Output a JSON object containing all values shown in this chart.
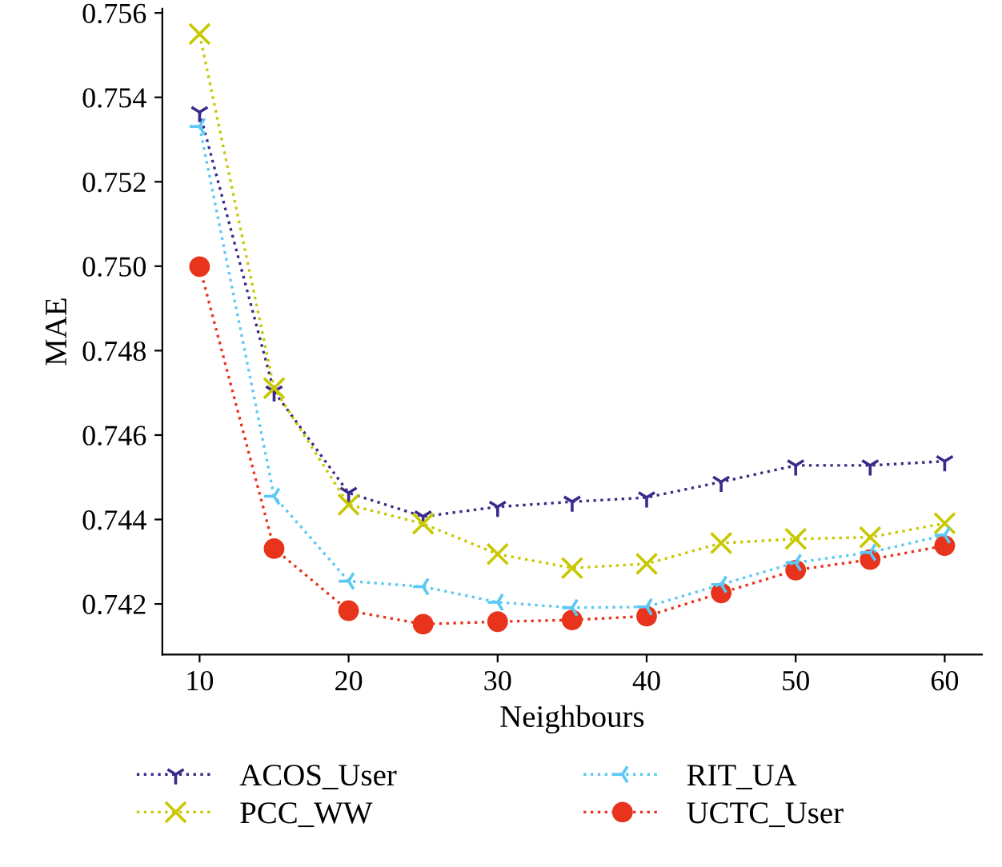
{
  "chart_data": {
    "type": "line",
    "xlabel": "Neighbours",
    "ylabel": "MAE",
    "x": [
      10,
      15,
      20,
      25,
      30,
      35,
      40,
      45,
      50,
      55,
      60
    ],
    "xlim": [
      7.5,
      62.5
    ],
    "xticks": [
      10,
      20,
      30,
      40,
      50,
      60
    ],
    "ylim": [
      0.7408,
      0.7561
    ],
    "yticks": [
      {
        "value": 0.742,
        "label": "0.742"
      },
      {
        "value": 0.744,
        "label": "0.744"
      },
      {
        "value": 0.746,
        "label": "0.746"
      },
      {
        "value": 0.748,
        "label": "0.748"
      },
      {
        "value": 0.75,
        "label": "0.750"
      },
      {
        "value": 0.752,
        "label": "0.752"
      },
      {
        "value": 0.754,
        "label": "0.754"
      },
      {
        "value": 0.756,
        "label": "0.756"
      }
    ],
    "grid": false,
    "legend": "bottom",
    "line_style": "dotted",
    "series": [
      {
        "name": "ACOS_User",
        "color": "#3a2a8a",
        "marker": "cross",
        "values": [
          0.75365,
          0.74703,
          0.74463,
          0.74407,
          0.7443,
          0.74442,
          0.74452,
          0.74489,
          0.74528,
          0.74528,
          0.74538
        ]
      },
      {
        "name": "PCC_WW",
        "color": "#c8c800",
        "marker": "cross",
        "values": [
          0.7555,
          0.74711,
          0.74435,
          0.7439,
          0.74318,
          0.74285,
          0.74295,
          0.74344,
          0.74354,
          0.74358,
          0.74391
        ]
      },
      {
        "name": "RIT_UA",
        "color": "#5bc8f5",
        "marker": "cross",
        "values": [
          0.75331,
          0.74455,
          0.74254,
          0.74241,
          0.74204,
          0.74191,
          0.74193,
          0.74246,
          0.74298,
          0.74322,
          0.74363
        ]
      },
      {
        "name": "UCTC_User",
        "color": "#e8341c",
        "marker": "circle",
        "values": [
          0.74999,
          0.74331,
          0.74184,
          0.74152,
          0.74158,
          0.74162,
          0.74171,
          0.74226,
          0.7428,
          0.74305,
          0.74338
        ]
      }
    ]
  }
}
